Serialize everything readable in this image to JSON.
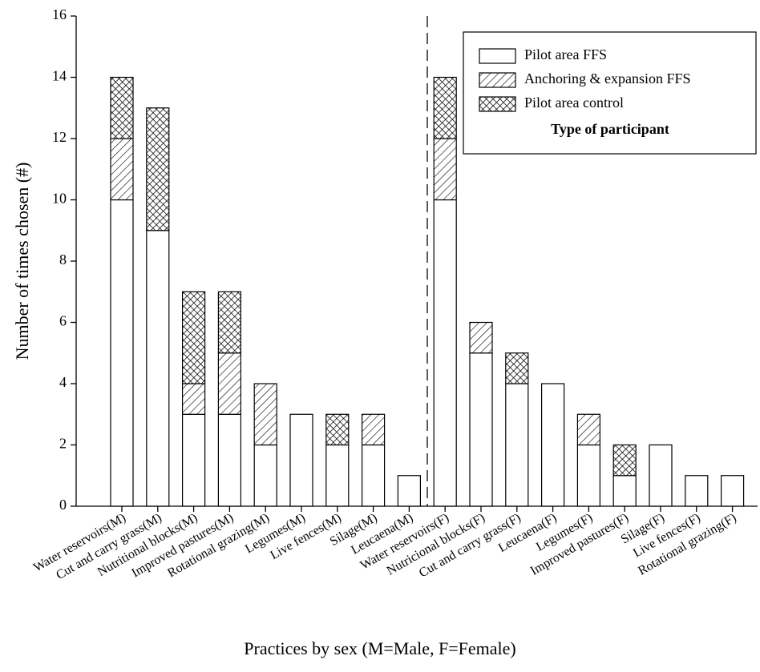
{
  "chart_data": {
    "type": "stacked_bar",
    "ylabel": "Number of times chosen (#)",
    "xlabel": "Practices by sex (M=Male, F=Female)",
    "categories": [
      "Water reservoirs(M)",
      "Cut and carry grass(M)",
      "Nutritional blocks(M)",
      "Improved pastures(M)",
      "Rotational grazing(M)",
      "Legumes(M)",
      "Live fences(M)",
      "Silage(M)",
      "Leucaena(M)",
      "Water reservoirs(F)",
      "Nutricional blocks(F)",
      "Cut and carry grass(F)",
      "Leucaena(F)",
      "Legumes(F)",
      "Improved pastures(F)",
      "Silage(F)",
      "Live fences(F)",
      "Rotational grazing(F)"
    ],
    "series": [
      {
        "name": "Pilot area FFS",
        "color": "#000000",
        "pattern": "none",
        "values": [
          10,
          9,
          3,
          3,
          2,
          3,
          2,
          2,
          1,
          10,
          5,
          4,
          4,
          2,
          1,
          2,
          1,
          1
        ]
      },
      {
        "name": "Anchoring & expansion FFS",
        "color": "#000000",
        "pattern": "hatch",
        "values": [
          2,
          0,
          1,
          2,
          2,
          0,
          0,
          1,
          0,
          2,
          1,
          0,
          0,
          1,
          0,
          0,
          0,
          0
        ]
      },
      {
        "name": "Pilot area control",
        "color": "#000000",
        "pattern": "crosshatch",
        "values": [
          2,
          4,
          3,
          2,
          0,
          0,
          1,
          0,
          0,
          2,
          0,
          1,
          0,
          0,
          1,
          0,
          0,
          0
        ]
      }
    ],
    "legend_title": "Type of participant",
    "legend_position": "upper right",
    "ylim": [
      0,
      16
    ],
    "yticks": [
      0,
      2,
      4,
      6,
      8,
      10,
      12,
      14,
      16
    ],
    "grid": false
  }
}
